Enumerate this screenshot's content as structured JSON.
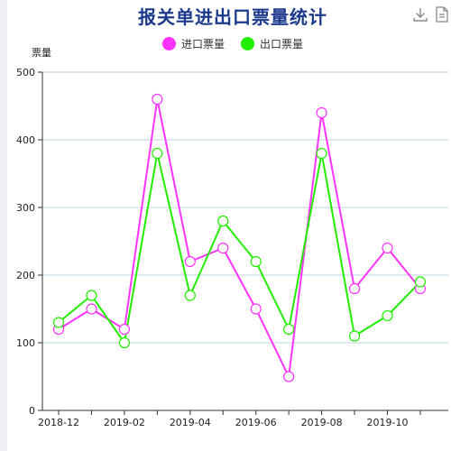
{
  "chart_data": {
    "type": "line",
    "title": "报关单进出口票量统计",
    "ylabel": "票量",
    "xlabel": "",
    "x": [
      "2018-12",
      "2019-01",
      "2019-02",
      "2019-03",
      "2019-04",
      "2019-05",
      "2019-06",
      "2019-07",
      "2019-08",
      "2019-09",
      "2019-10",
      "2019-11"
    ],
    "x_tick_labels": [
      "2018-12",
      "2019-02",
      "2019-04",
      "2019-06",
      "2019-08",
      "2019-10"
    ],
    "y_ticks": [
      0,
      100,
      200,
      300,
      400,
      500
    ],
    "ylim": [
      0,
      500
    ],
    "grid": true,
    "legend_position": "top-center",
    "series": [
      {
        "name": "进口票量",
        "color": "#ff33ff",
        "values": [
          120,
          150,
          120,
          460,
          220,
          240,
          150,
          50,
          440,
          180,
          240,
          180
        ]
      },
      {
        "name": "出口票量",
        "color": "#22ee00",
        "values": [
          130,
          170,
          100,
          380,
          170,
          280,
          220,
          120,
          380,
          110,
          140,
          190
        ]
      }
    ]
  },
  "toolbox": {
    "download_icon": "download-icon",
    "data_view_icon": "data-view-icon"
  }
}
